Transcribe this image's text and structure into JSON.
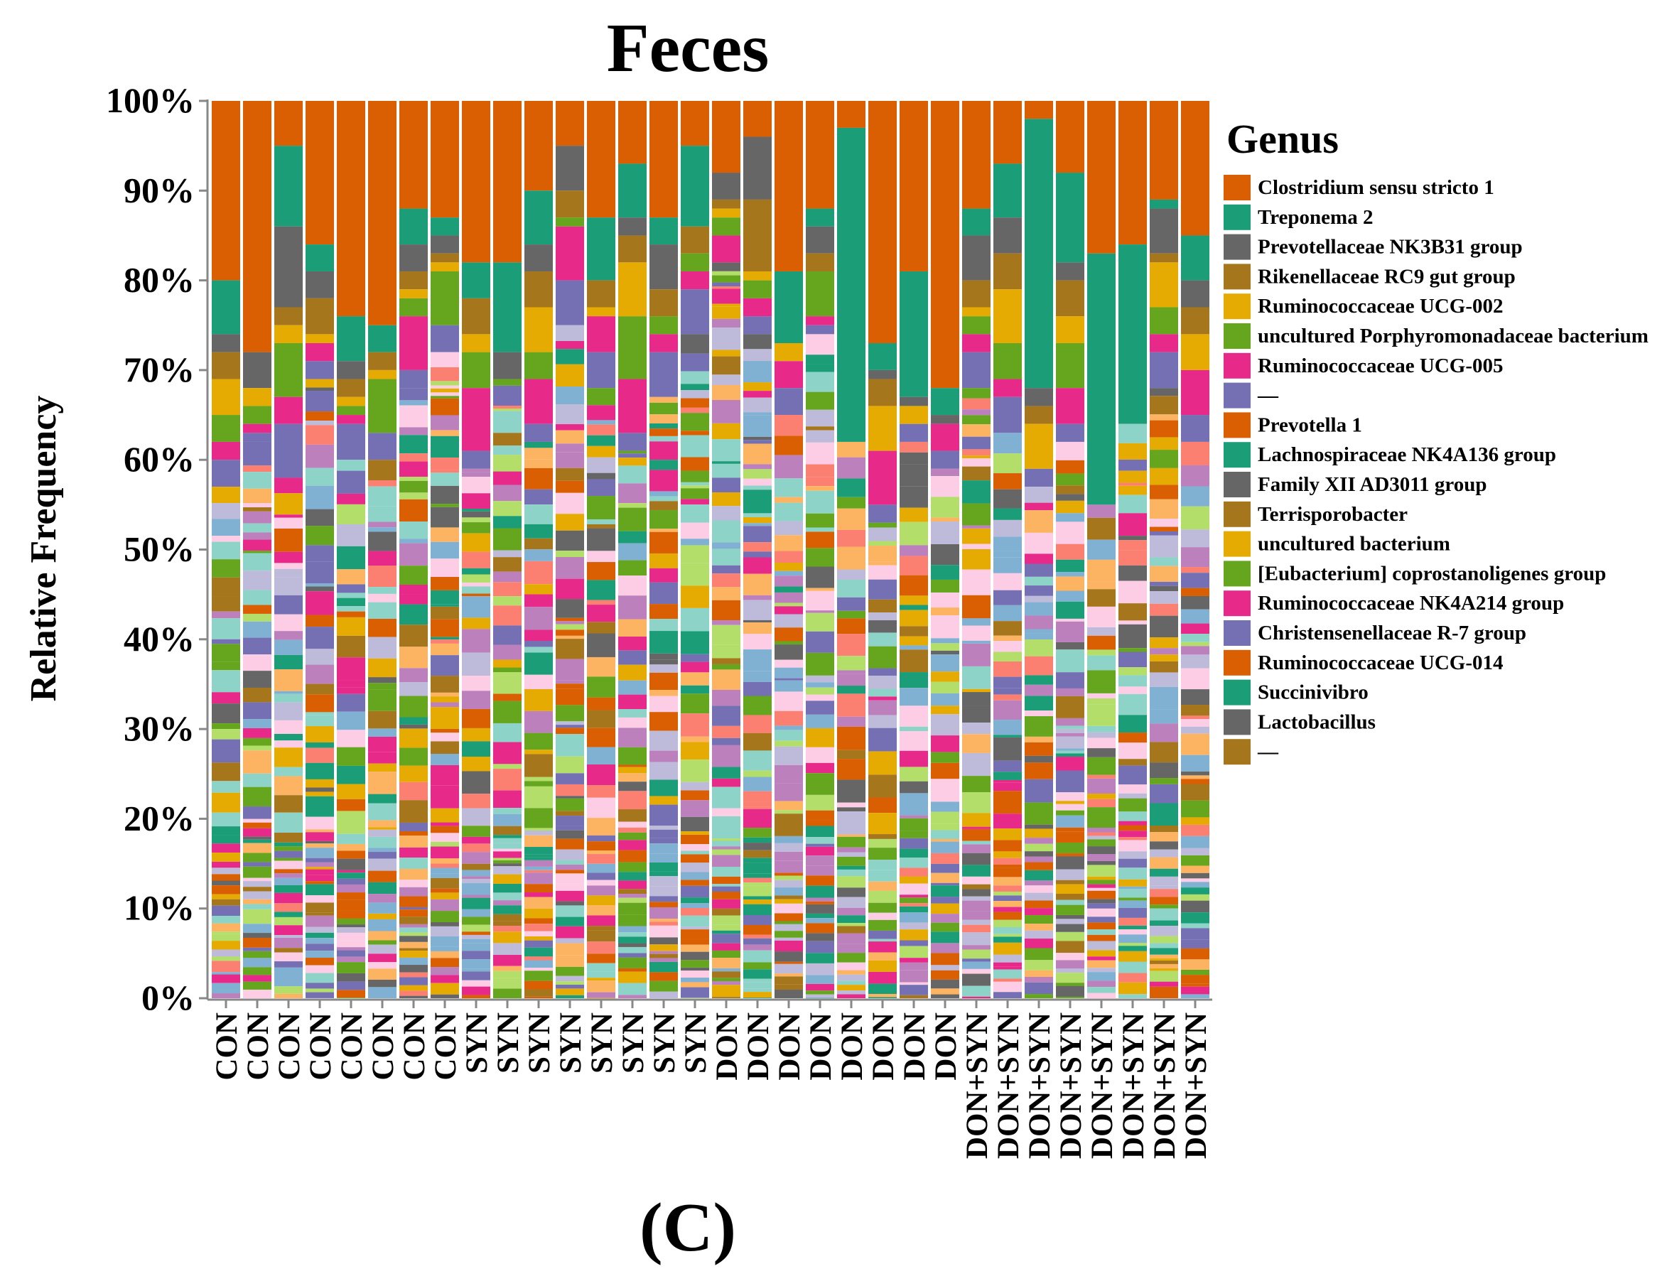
{
  "chart_data": {
    "type": "bar",
    "stacked": true,
    "title": "Feces",
    "ylabel": "Relative Frequency",
    "xlabel": "",
    "ylim": [
      0,
      100
    ],
    "yticks": [
      "0%",
      "10%",
      "20%",
      "30%",
      "40%",
      "50%",
      "60%",
      "70%",
      "80%",
      "90%",
      "100%"
    ],
    "panel_label": "(C)",
    "legend_title": "Genus",
    "legend_position": "right",
    "categories": [
      "CON",
      "CON",
      "CON",
      "CON",
      "CON",
      "CON",
      "CON",
      "CON",
      "SYN",
      "SYN",
      "SYN",
      "SYN",
      "SYN",
      "SYN",
      "SYN",
      "SYN",
      "DON",
      "DON",
      "DON",
      "DON",
      "DON",
      "DON",
      "DON",
      "DON",
      "DON+SYN",
      "DON+SYN",
      "DON+SYN",
      "DON+SYN",
      "DON+SYN",
      "DON+SYN",
      "DON+SYN",
      "DON+SYN"
    ],
    "series": [
      {
        "name": "Clostridium sensu stricto 1",
        "color": "#D95F02",
        "values": [
          20,
          28,
          5,
          16,
          24,
          25,
          12,
          13,
          18,
          18,
          10,
          5,
          13,
          7,
          13,
          5,
          8,
          4,
          19,
          12,
          3,
          27,
          19,
          32,
          12,
          7,
          2,
          8,
          17,
          16,
          11,
          15
        ]
      },
      {
        "name": "Treponema 2",
        "color": "#1B9E77",
        "values": [
          6,
          0,
          9,
          3,
          5,
          3,
          4,
          2,
          4,
          10,
          6,
          0,
          7,
          6,
          3,
          9,
          0,
          0,
          8,
          2,
          35,
          3,
          14,
          3,
          3,
          6,
          30,
          10,
          28,
          20,
          1,
          5
        ]
      },
      {
        "name": "Prevotellaceae NK3B31 group",
        "color": "#666666",
        "values": [
          2,
          4,
          9,
          3,
          2,
          0,
          3,
          2,
          0,
          3,
          3,
          5,
          0,
          2,
          5,
          0,
          3,
          7,
          0,
          3,
          0,
          1,
          1,
          1,
          5,
          4,
          2,
          2,
          0,
          0,
          5,
          3
        ]
      },
      {
        "name": "Rikenellaceae RC9 gut group",
        "color": "#A6761D",
        "values": [
          3,
          0,
          2,
          4,
          2,
          2,
          2,
          1,
          4,
          0,
          4,
          3,
          3,
          3,
          3,
          3,
          1,
          8,
          0,
          2,
          0,
          3,
          0,
          0,
          3,
          4,
          2,
          4,
          0,
          0,
          1,
          3
        ]
      },
      {
        "name": "Ruminococcaceae UCG-002",
        "color": "#E6AB02",
        "values": [
          4,
          2,
          2,
          1,
          1,
          1,
          1,
          1,
          2,
          0,
          5,
          0,
          1,
          6,
          0,
          0,
          1,
          1,
          2,
          0,
          0,
          5,
          2,
          0,
          1,
          6,
          5,
          3,
          0,
          0,
          5,
          4
        ]
      },
      {
        "name": "uncultured Porphyromonadaceae bacterium",
        "color": "#66A61E",
        "values": [
          3,
          2,
          6,
          0,
          1,
          6,
          2,
          6,
          4,
          0,
          3,
          1,
          0,
          7,
          2,
          2,
          2,
          2,
          0,
          5,
          0,
          0,
          0,
          0,
          2,
          4,
          0,
          5,
          0,
          0,
          3,
          0
        ]
      },
      {
        "name": "Ruminococcaceae UCG-005",
        "color": "#E7298A",
        "values": [
          2,
          1,
          3,
          2,
          1,
          0,
          6,
          0,
          7,
          0,
          5,
          6,
          4,
          6,
          2,
          2,
          3,
          2,
          3,
          1,
          0,
          6,
          0,
          3,
          2,
          2,
          0,
          4,
          0,
          0,
          2,
          5
        ]
      },
      {
        "name": "—",
        "color": "#7570B3",
        "values": [
          3,
          1,
          6,
          2,
          4,
          3,
          2,
          3,
          2,
          0,
          2,
          5,
          4,
          2,
          5,
          5,
          0,
          2,
          3,
          1,
          0,
          2,
          2,
          2,
          4,
          4,
          2,
          2,
          0,
          0,
          4,
          3
        ]
      }
    ],
    "legend_entries": [
      {
        "name": "Clostridium sensu stricto 1",
        "color": "#D95F02"
      },
      {
        "name": "Treponema 2",
        "color": "#1B9E77"
      },
      {
        "name": "Prevotellaceae NK3B31 group",
        "color": "#666666"
      },
      {
        "name": "Rikenellaceae RC9 gut group",
        "color": "#A6761D"
      },
      {
        "name": "Ruminococcaceae UCG-002",
        "color": "#E6AB02"
      },
      {
        "name": "uncultured Porphyromonadaceae bacterium",
        "color": "#66A61E"
      },
      {
        "name": "Ruminococcaceae UCG-005",
        "color": "#E7298A"
      },
      {
        "name": "—",
        "color": "#7570B3"
      },
      {
        "name": "Prevotella 1",
        "color": "#D95F02"
      },
      {
        "name": "Lachnospiraceae NK4A136 group",
        "color": "#1B9E77"
      },
      {
        "name": "Family XII AD3011 group",
        "color": "#666666"
      },
      {
        "name": "Terrisporobacter",
        "color": "#A6761D"
      },
      {
        "name": "uncultured bacterium",
        "color": "#E6AB02"
      },
      {
        "name": "[Eubacterium] coprostanoligenes group",
        "color": "#66A61E"
      },
      {
        "name": "Ruminococcaceae NK4A214 group",
        "color": "#E7298A"
      },
      {
        "name": "Christensenellaceae R-7 group",
        "color": "#7570B3"
      },
      {
        "name": "Ruminococcaceae UCG-014",
        "color": "#D95F02"
      },
      {
        "name": "Succinivibro",
        "color": "#1B9E77"
      },
      {
        "name": "Lactobacillus",
        "color": "#666666"
      },
      {
        "name": "—",
        "color": "#A6761D"
      }
    ],
    "palette": [
      "#D95F02",
      "#1B9E77",
      "#666666",
      "#A6761D",
      "#E6AB02",
      "#66A61E",
      "#E7298A",
      "#7570B3"
    ]
  }
}
